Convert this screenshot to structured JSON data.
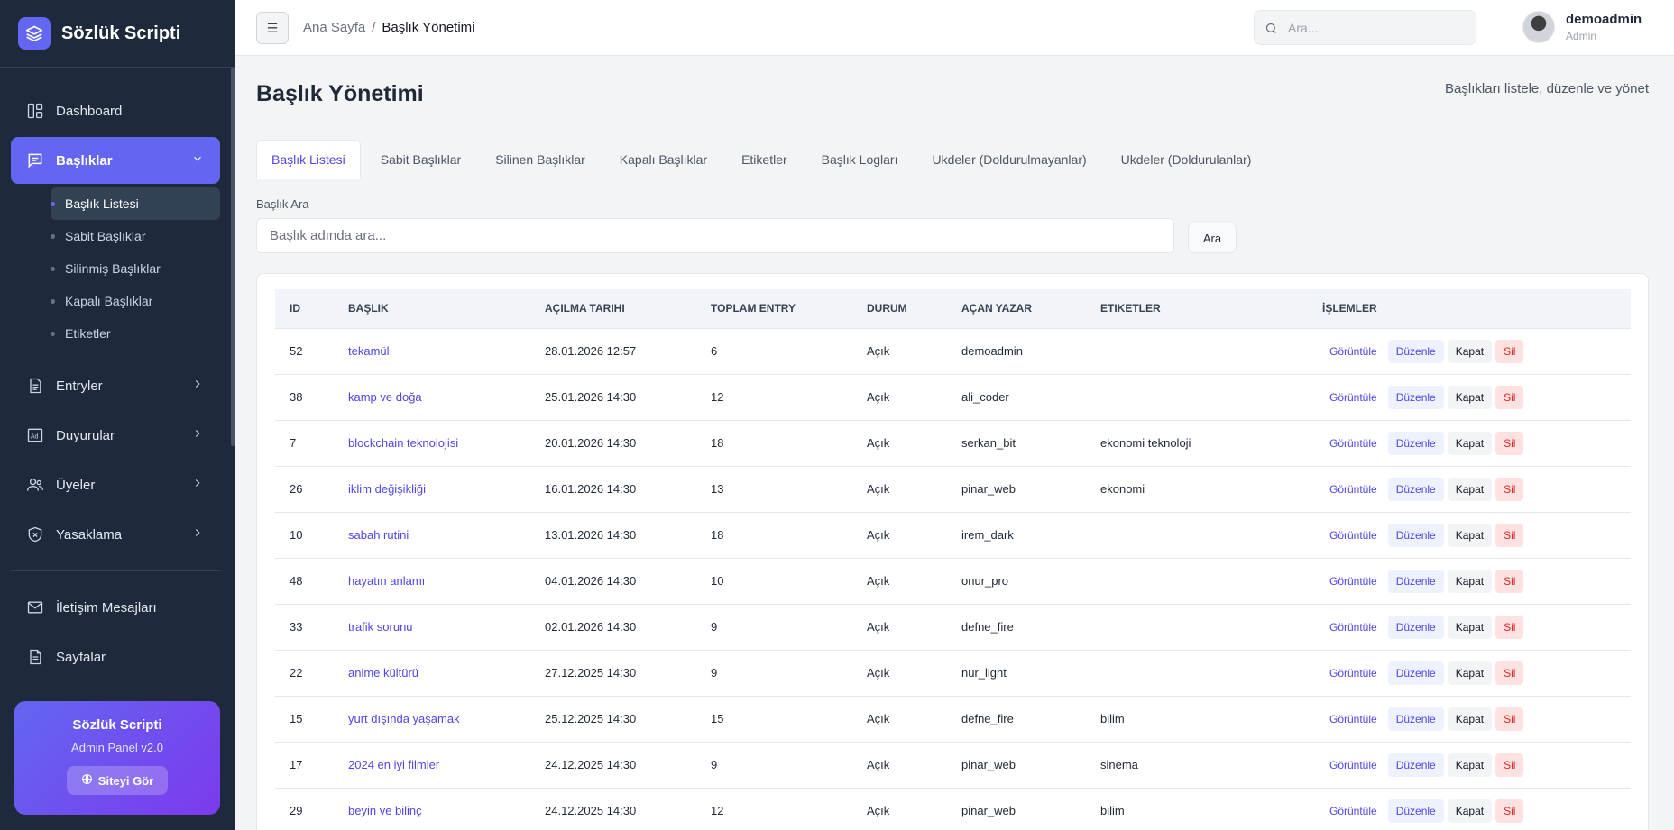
{
  "app": {
    "brand": "Sözlük Scripti"
  },
  "sidebar": {
    "items": [
      {
        "label": "Dashboard",
        "icon": "dashboard-icon"
      },
      {
        "label": "Başlıklar",
        "icon": "message-icon"
      },
      {
        "label": "Entryler",
        "icon": "document-icon"
      },
      {
        "label": "Duyurular",
        "icon": "ad-icon"
      },
      {
        "label": "Üyeler",
        "icon": "users-icon"
      },
      {
        "label": "Yasaklama",
        "icon": "shield-icon"
      },
      {
        "label": "İletişim Mesajları",
        "icon": "mail-icon"
      },
      {
        "label": "Sayfalar",
        "icon": "pages-icon"
      }
    ],
    "subitems": [
      {
        "label": "Başlık Listesi"
      },
      {
        "label": "Sabit Başlıklar"
      },
      {
        "label": "Silinmiş Başlıklar"
      },
      {
        "label": "Kapalı Başlıklar"
      },
      {
        "label": "Etiketler"
      }
    ],
    "promo": {
      "title": "Sözlük Scripti",
      "subtitle": "Admin Panel v2.0",
      "button": "Siteyi Gör"
    }
  },
  "topbar": {
    "breadcrumb": {
      "home": "Ana Sayfa",
      "separator": "/",
      "current": "Başlık Yönetimi"
    },
    "search_placeholder": "Ara...",
    "user": {
      "name": "demoadmin",
      "role": "Admin"
    }
  },
  "page": {
    "title": "Başlık Yönetimi",
    "subtitle": "Başlıkları listele, düzenle ve yönet",
    "tabs": [
      {
        "label": "Başlık Listesi"
      },
      {
        "label": "Sabit Başlıklar"
      },
      {
        "label": "Silinen Başlıklar"
      },
      {
        "label": "Kapalı Başlıklar"
      },
      {
        "label": "Etiketler"
      },
      {
        "label": "Başlık Logları"
      },
      {
        "label": "Ukdeler (Doldurulmayanlar)"
      },
      {
        "label": "Ukdeler (Doldurulanlar)"
      }
    ],
    "search": {
      "label": "Başlık Ara",
      "placeholder": "Başlık adında ara...",
      "button": "Ara"
    },
    "table": {
      "columns": [
        "ID",
        "Başlık",
        "Açılma Tarihi",
        "Toplam Entry",
        "Durum",
        "Açan Yazar",
        "Etiketler",
        "İşlemler"
      ],
      "actions": {
        "view": "Görüntüle",
        "edit": "Düzenle",
        "close": "Kapat",
        "delete": "Sil"
      },
      "rows": [
        {
          "id": "52",
          "title": "tekamül",
          "date": "28.01.2026 12:57",
          "entries": "6",
          "status": "Açık",
          "author": "demoadmin",
          "tags": ""
        },
        {
          "id": "38",
          "title": "kamp ve doğa",
          "date": "25.01.2026 14:30",
          "entries": "12",
          "status": "Açık",
          "author": "ali_coder",
          "tags": ""
        },
        {
          "id": "7",
          "title": "blockchain teknolojisi",
          "date": "20.01.2026 14:30",
          "entries": "18",
          "status": "Açık",
          "author": "serkan_bit",
          "tags": "ekonomi teknoloji"
        },
        {
          "id": "26",
          "title": "iklim değişikliği",
          "date": "16.01.2026 14:30",
          "entries": "13",
          "status": "Açık",
          "author": "pinar_web",
          "tags": "ekonomi"
        },
        {
          "id": "10",
          "title": "sabah rutini",
          "date": "13.01.2026 14:30",
          "entries": "18",
          "status": "Açık",
          "author": "irem_dark",
          "tags": ""
        },
        {
          "id": "48",
          "title": "hayatın anlamı",
          "date": "04.01.2026 14:30",
          "entries": "10",
          "status": "Açık",
          "author": "onur_pro",
          "tags": ""
        },
        {
          "id": "33",
          "title": "trafik sorunu",
          "date": "02.01.2026 14:30",
          "entries": "9",
          "status": "Açık",
          "author": "defne_fire",
          "tags": ""
        },
        {
          "id": "22",
          "title": "anime kültürü",
          "date": "27.12.2025 14:30",
          "entries": "9",
          "status": "Açık",
          "author": "nur_light",
          "tags": ""
        },
        {
          "id": "15",
          "title": "yurt dışında yaşamak",
          "date": "25.12.2025 14:30",
          "entries": "15",
          "status": "Açık",
          "author": "defne_fire",
          "tags": "bilim"
        },
        {
          "id": "17",
          "title": "2024 en iyi filmler",
          "date": "24.12.2025 14:30",
          "entries": "9",
          "status": "Açık",
          "author": "pinar_web",
          "tags": "sinema"
        },
        {
          "id": "29",
          "title": "beyin ve bilinç",
          "date": "24.12.2025 14:30",
          "entries": "12",
          "status": "Açık",
          "author": "pinar_web",
          "tags": "bilim"
        }
      ]
    }
  },
  "colors": {
    "accent": "#6366f1",
    "sidebar_bg": "#1e293b",
    "link": "#4f46e5",
    "danger": "#dc2626"
  }
}
